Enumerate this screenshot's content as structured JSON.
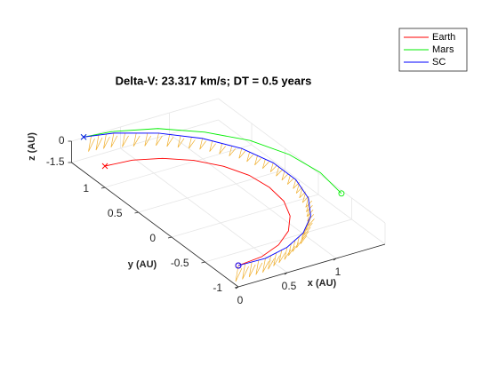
{
  "chart_data": {
    "type": "line3d",
    "title": "Delta-V: 23.317 km/s; DT = 0.5 years",
    "xlabel": "x (AU)",
    "ylabel": "y (AU)",
    "zlabel": "z (AU)",
    "xlim": [
      0,
      1.5
    ],
    "ylim": [
      -1,
      1.5
    ],
    "zlim": [
      -1.5,
      0
    ],
    "xticks": [
      0,
      0.5,
      1
    ],
    "yticks": [
      -1,
      -0.5,
      0,
      0.5,
      1
    ],
    "zticks": [
      -1.5,
      0
    ],
    "grid": true,
    "legend": "northeast",
    "series": [
      {
        "name": "Earth",
        "color": "#ff0000",
        "x": [
          0,
          0.26,
          0.5,
          0.71,
          0.87,
          0.97,
          1,
          0.97,
          0.87,
          0.71,
          0.5,
          0.26,
          0
        ],
        "y": [
          -1,
          -0.97,
          -0.87,
          -0.71,
          -0.5,
          -0.26,
          0,
          0.26,
          0.5,
          0.71,
          0.87,
          0.97,
          1
        ],
        "z": [
          0,
          0,
          0,
          0,
          0,
          0,
          0,
          0,
          0,
          0,
          0,
          0,
          0
        ]
      },
      {
        "name": "Mars",
        "color": "#00ee00",
        "x": [
          1.47,
          1.52,
          1.47,
          1.32,
          1.07,
          0.76,
          0.39,
          0.13
        ],
        "y": [
          -0.39,
          0,
          0.39,
          0.76,
          1.07,
          1.32,
          1.47,
          1.51
        ],
        "z": [
          0,
          0,
          0,
          0,
          0,
          0,
          0,
          0
        ]
      },
      {
        "name": "SC",
        "color": "#0000ff",
        "x": [
          0,
          0.27,
          0.54,
          0.8,
          1.02,
          1.18,
          1.27,
          1.27,
          1.18,
          0.99,
          0.72,
          0.39,
          0.13
        ],
        "y": [
          -1,
          -1.01,
          -0.94,
          -0.8,
          -0.59,
          -0.32,
          0,
          0.34,
          0.68,
          0.99,
          1.25,
          1.44,
          1.51
        ],
        "z": [
          0,
          0,
          0,
          0,
          0,
          0,
          0,
          0,
          0,
          0,
          0,
          0,
          0
        ]
      }
    ]
  }
}
